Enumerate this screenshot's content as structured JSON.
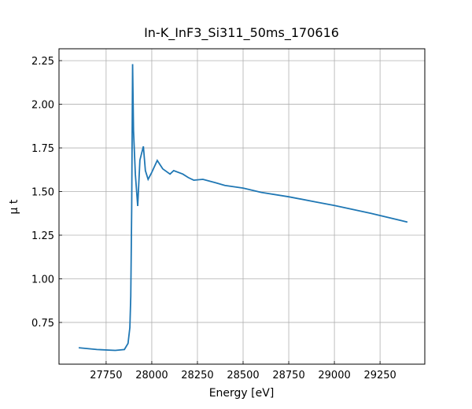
{
  "chart_data": {
    "type": "line",
    "title": "In-K_InF3_Si311_50ms_170616",
    "xlabel": "Energy [eV]",
    "ylabel": "μ t",
    "x": [
      27600,
      27700,
      27800,
      27850,
      27870,
      27880,
      27885,
      27890,
      27895,
      27900,
      27910,
      27923,
      27935,
      27954,
      27965,
      27980,
      28000,
      28030,
      28060,
      28100,
      28120,
      28170,
      28200,
      28230,
      28280,
      28350,
      28400,
      28500,
      28600,
      28750,
      28900,
      29000,
      29200,
      29400
    ],
    "series": [
      {
        "name": "μ t",
        "color": "#1f77b4",
        "values": [
          0.605,
          0.595,
          0.59,
          0.595,
          0.63,
          0.72,
          0.9,
          1.4,
          2.23,
          1.85,
          1.6,
          1.417,
          1.68,
          1.759,
          1.62,
          1.57,
          1.61,
          1.678,
          1.63,
          1.6,
          1.62,
          1.6,
          1.58,
          1.565,
          1.57,
          1.55,
          1.535,
          1.52,
          1.495,
          1.47,
          1.44,
          1.42,
          1.375,
          1.325
        ]
      }
    ],
    "xlim": [
      27492,
      29495
    ],
    "ylim": [
      0.511,
      2.318
    ],
    "xticks": [
      27750,
      28000,
      28250,
      28500,
      28750,
      29000,
      29250
    ],
    "yticks": [
      0.75,
      {
        "value": 1.0,
        "label": "1.00"
      },
      1.25,
      {
        "value": 1.5,
        "label": "1.50"
      },
      1.75,
      {
        "value": 2.0,
        "label": "2.00"
      },
      2.25
    ],
    "grid": true
  }
}
